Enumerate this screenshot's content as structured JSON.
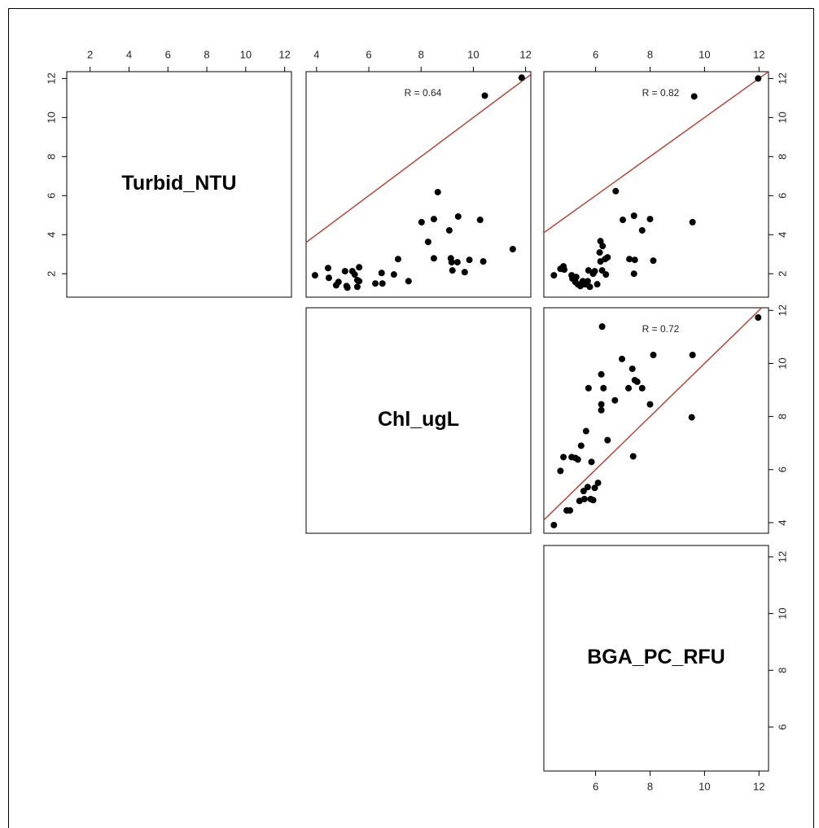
{
  "chart_data": [
    {
      "type": "label",
      "label": "Turbid_NTU",
      "xlim": [
        0.8,
        12.35
      ],
      "ylim": [
        0.8,
        12.35
      ],
      "xticks": [
        2,
        4,
        6,
        8,
        10,
        12
      ],
      "xaxis": "top",
      "yticks": [
        2,
        4,
        6,
        8,
        10,
        12
      ],
      "yaxis": "left"
    },
    {
      "type": "scatter",
      "annotation": "R = 0.64",
      "color": "#000000",
      "reference_line": "#b5473a",
      "xlim": [
        3.6,
        12.2
      ],
      "ylim": [
        0.8,
        12.35
      ],
      "xticks": [
        4,
        6,
        8,
        10,
        12
      ],
      "xaxis": "top",
      "x": [
        3.94,
        4.44,
        4.47,
        4.75,
        4.84,
        5.09,
        5.15,
        5.18,
        5.37,
        5.46,
        5.56,
        5.63,
        5.56,
        5.63,
        6.25,
        6.49,
        6.52,
        6.96,
        7.12,
        7.52,
        8.02,
        8.27,
        8.49,
        8.49,
        8.64,
        9.08,
        9.14,
        9.17,
        9.2,
        9.42,
        9.39,
        9.67,
        9.85,
        10.26,
        10.38,
        10.44,
        11.51,
        11.85
      ],
      "values": [
        1.92,
        2.29,
        1.79,
        1.41,
        1.58,
        2.13,
        1.37,
        1.29,
        2.13,
        1.96,
        1.67,
        2.33,
        1.33,
        1.62,
        1.5,
        2.04,
        1.5,
        1.96,
        2.75,
        1.62,
        4.64,
        3.63,
        4.8,
        2.79,
        6.18,
        4.22,
        2.79,
        2.59,
        2.17,
        4.93,
        2.59,
        2.08,
        2.71,
        4.76,
        2.63,
        11.12,
        3.26,
        12.04
      ]
    },
    {
      "type": "scatter",
      "annotation": "R = 0.82",
      "color": "#000000",
      "reference_line": "#b5473a",
      "xlim": [
        4.1,
        12.35
      ],
      "ylim": [
        0.8,
        12.35
      ],
      "xticks": [
        6,
        8,
        10,
        12
      ],
      "xaxis": "top",
      "yticks": [
        2,
        4,
        6,
        8,
        10,
        12
      ],
      "yaxis": "right",
      "x": [
        4.47,
        4.71,
        4.82,
        4.85,
        5.12,
        5.15,
        5.26,
        5.29,
        5.35,
        5.44,
        5.53,
        5.56,
        5.65,
        5.71,
        5.74,
        5.79,
        5.91,
        5.97,
        6.06,
        6.15,
        6.18,
        6.18,
        6.24,
        6.26,
        6.35,
        6.38,
        6.44,
        6.74,
        7.0,
        7.24,
        7.41,
        7.44,
        7.41,
        7.71,
        8.0,
        8.12,
        9.56,
        9.62,
        11.97
      ],
      "values": [
        1.92,
        2.25,
        2.38,
        2.21,
        1.92,
        1.75,
        1.58,
        1.83,
        1.46,
        1.37,
        1.62,
        1.46,
        1.46,
        1.62,
        2.17,
        1.33,
        2.0,
        2.13,
        1.46,
        3.09,
        2.63,
        3.67,
        2.17,
        3.42,
        2.75,
        1.96,
        2.84,
        6.23,
        4.76,
        2.75,
        4.97,
        2.71,
        2.0,
        4.22,
        4.8,
        2.67,
        4.64,
        11.08,
        12.0
      ]
    },
    {
      "type": "label",
      "label": "Chl_ugL",
      "xlim": [
        3.6,
        12.2
      ],
      "ylim": [
        3.6,
        12.1
      ]
    },
    {
      "type": "scatter",
      "annotation": "R = 0.72",
      "color": "#000000",
      "reference_line": "#b5473a",
      "xlim": [
        4.1,
        12.35
      ],
      "ylim": [
        3.6,
        12.1
      ],
      "yticks": [
        4,
        6,
        8,
        10,
        12
      ],
      "yaxis": "right",
      "x": [
        4.47,
        4.71,
        4.82,
        4.94,
        5.06,
        5.12,
        5.26,
        5.35,
        5.41,
        5.47,
        5.59,
        5.56,
        5.65,
        5.71,
        5.82,
        5.85,
        5.91,
        5.97,
        6.09,
        6.44,
        5.74,
        6.24,
        6.21,
        6.21,
        6.21,
        6.29,
        6.71,
        6.97,
        7.21,
        7.35,
        7.44,
        7.53,
        7.71,
        8.0,
        8.12,
        9.56,
        9.53,
        7.38,
        11.97
      ],
      "values": [
        3.91,
        5.95,
        6.47,
        4.46,
        4.46,
        6.47,
        6.44,
        6.38,
        4.82,
        6.9,
        4.89,
        5.19,
        7.45,
        5.34,
        4.89,
        6.29,
        4.85,
        5.31,
        5.5,
        7.11,
        9.07,
        11.39,
        9.59,
        8.46,
        8.24,
        9.07,
        8.61,
        10.17,
        9.07,
        9.8,
        9.37,
        9.31,
        9.07,
        8.46,
        10.32,
        10.32,
        7.97,
        6.5,
        11.73
      ]
    },
    {
      "type": "label",
      "label": "BGA_PC_RFU",
      "xlim": [
        4.1,
        12.35
      ],
      "ylim": [
        4.45,
        12.4
      ],
      "xticks": [
        6,
        8,
        10,
        12
      ],
      "xaxis": "bottom",
      "yticks": [
        6,
        8,
        10,
        12
      ],
      "yaxis": "right"
    }
  ]
}
